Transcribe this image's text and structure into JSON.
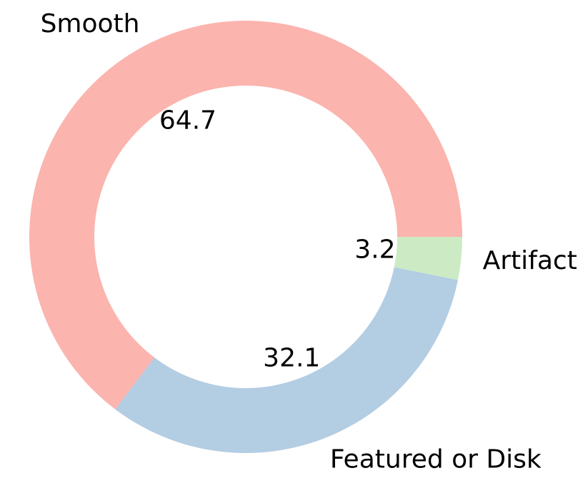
{
  "chart_data": {
    "type": "pie",
    "style": "donut",
    "categories": [
      "Smooth",
      "Featured or Disk",
      "Artifact"
    ],
    "values": [
      64.7,
      32.1,
      3.2
    ],
    "value_labels": [
      "64.7",
      "32.1",
      "3.2"
    ],
    "colors": [
      "#fbb4ae",
      "#b3cde3",
      "#ccebc5"
    ],
    "start_angle_deg": 0,
    "direction": "counterclockwise",
    "title": "",
    "legend": "none"
  }
}
